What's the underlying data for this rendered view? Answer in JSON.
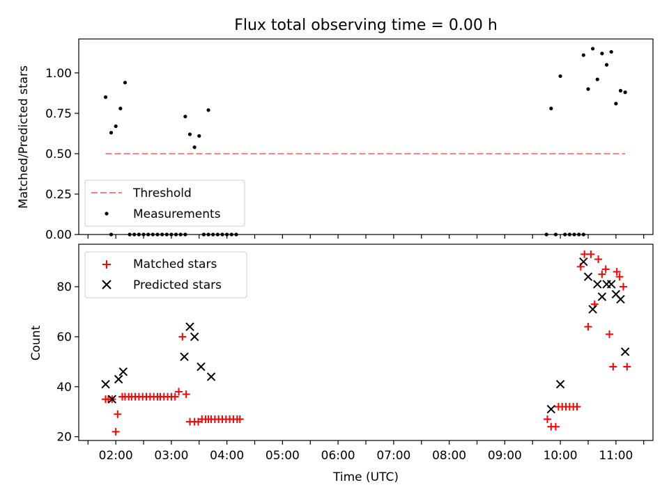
{
  "chart_data": [
    {
      "type": "scatter",
      "title": "Flux total observing time = 0.00 h",
      "ylabel": "Matched/Predicted stars",
      "ylim": [
        0,
        1.21
      ],
      "yticks": [
        0.0,
        0.25,
        0.5,
        0.75,
        1.0
      ],
      "ytick_labels": [
        "0.00",
        "0.25",
        "0.50",
        "0.75",
        "1.00"
      ],
      "grid": false,
      "legend_position": "lower-left",
      "series": [
        {
          "name": "Threshold",
          "kind": "line",
          "style": "dashed",
          "color": "#f08080",
          "x": [
            "01:49",
            "11:10"
          ],
          "y": [
            0.5,
            0.5
          ]
        },
        {
          "name": "Measurements",
          "kind": "scatter",
          "marker": "dot",
          "color": "#000000",
          "x": [
            "01:49",
            "01:55",
            "02:00",
            "02:05",
            "02:10",
            "03:15",
            "03:20",
            "03:25",
            "03:30",
            "03:40",
            "09:50",
            "10:00",
            "10:25",
            "10:30",
            "10:35",
            "10:40",
            "10:45",
            "10:50",
            "10:55",
            "11:00",
            "11:05",
            "11:10",
            "01:55",
            "02:15",
            "02:20",
            "02:25",
            "02:30",
            "02:35",
            "02:40",
            "02:45",
            "02:50",
            "02:55",
            "03:00",
            "03:05",
            "03:10",
            "03:15",
            "03:35",
            "03:40",
            "03:45",
            "03:50",
            "03:55",
            "04:00",
            "04:05",
            "04:10",
            "09:45",
            "09:55",
            "10:05",
            "10:10",
            "10:15",
            "10:20",
            "10:25"
          ],
          "y": [
            0.85,
            0.63,
            0.67,
            0.78,
            0.94,
            0.73,
            0.62,
            0.54,
            0.61,
            0.77,
            0.78,
            0.98,
            1.11,
            0.9,
            1.15,
            0.96,
            1.12,
            1.05,
            1.13,
            0.81,
            0.89,
            0.88,
            0,
            0,
            0,
            0,
            0,
            0,
            0,
            0,
            0,
            0,
            0,
            0,
            0,
            0,
            0,
            0,
            0,
            0,
            0,
            0,
            0,
            0,
            0,
            0,
            0,
            0,
            0,
            0,
            0
          ]
        }
      ]
    },
    {
      "type": "scatter",
      "xlabel": "Time (UTC)",
      "ylabel": "Count",
      "xlim": [
        "01:20",
        "11:40"
      ],
      "ylim": [
        18.5,
        97
      ],
      "yticks": [
        20,
        40,
        60,
        80
      ],
      "ytick_labels": [
        "20",
        "40",
        "60",
        "80"
      ],
      "xticks": [
        "01:30",
        "02:00",
        "02:30",
        "03:00",
        "03:30",
        "04:00",
        "04:30",
        "05:00",
        "05:30",
        "06:00",
        "06:30",
        "07:00",
        "07:30",
        "08:00",
        "08:30",
        "09:00",
        "09:30",
        "10:00",
        "10:30",
        "11:00",
        "11:30"
      ],
      "xtick_labels": [
        "",
        "02:00",
        "",
        "03:00",
        "",
        "04:00",
        "",
        "05:00",
        "",
        "06:00",
        "",
        "07:00",
        "",
        "08:00",
        "",
        "09:00",
        "",
        "10:00",
        "",
        "11:00",
        ""
      ],
      "grid": false,
      "legend_position": "upper-left",
      "series": [
        {
          "name": "Matched stars",
          "kind": "scatter",
          "marker": "plus",
          "color": "#ff0000",
          "x": [
            "01:49",
            "01:52",
            "01:56",
            "02:00",
            "02:02",
            "02:07",
            "02:10",
            "02:14",
            "02:17",
            "02:21",
            "02:25",
            "02:29",
            "02:33",
            "02:37",
            "02:41",
            "02:45",
            "02:48",
            "02:52",
            "02:56",
            "03:00",
            "03:04",
            "03:08",
            "03:12",
            "03:16",
            "03:20",
            "03:25",
            "03:29",
            "03:33",
            "03:37",
            "03:40",
            "03:43",
            "03:47",
            "03:51",
            "03:55",
            "03:59",
            "04:03",
            "04:07",
            "04:11",
            "04:14",
            "09:46",
            "09:50",
            "09:55",
            "09:58",
            "10:02",
            "10:06",
            "10:10",
            "10:14",
            "10:18",
            "10:22",
            "10:26",
            "10:30",
            "10:33",
            "10:37",
            "10:41",
            "10:45",
            "10:49",
            "10:53",
            "10:57",
            "11:01",
            "11:04",
            "11:08",
            "11:12"
          ],
          "y": [
            35,
            35,
            35,
            22,
            29,
            36,
            36,
            36,
            36,
            36,
            36,
            36,
            36,
            36,
            36,
            36,
            36,
            36,
            36,
            36,
            36,
            38,
            60,
            37,
            26,
            26,
            26,
            27,
            27,
            27,
            27,
            27,
            27,
            27,
            27,
            27,
            27,
            27,
            27,
            27,
            24,
            24,
            32,
            32,
            32,
            32,
            32,
            32,
            88,
            93,
            64,
            93,
            73,
            91,
            85,
            87,
            61,
            48,
            86,
            84,
            80,
            48
          ]
        },
        {
          "name": "Predicted stars",
          "kind": "scatter",
          "marker": "x",
          "color": "#000000",
          "x": [
            "01:49",
            "01:56",
            "02:03",
            "02:08",
            "03:14",
            "03:20",
            "03:25",
            "03:32",
            "03:43",
            "09:50",
            "10:00",
            "10:25",
            "10:30",
            "10:35",
            "10:40",
            "10:45",
            "10:50",
            "10:55",
            "11:00",
            "11:05",
            "11:10"
          ],
          "y": [
            41,
            35,
            43,
            46,
            52,
            64,
            60,
            48,
            44,
            31,
            41,
            90,
            84,
            71,
            81,
            76,
            81,
            81,
            77,
            75,
            54
          ]
        }
      ]
    }
  ]
}
